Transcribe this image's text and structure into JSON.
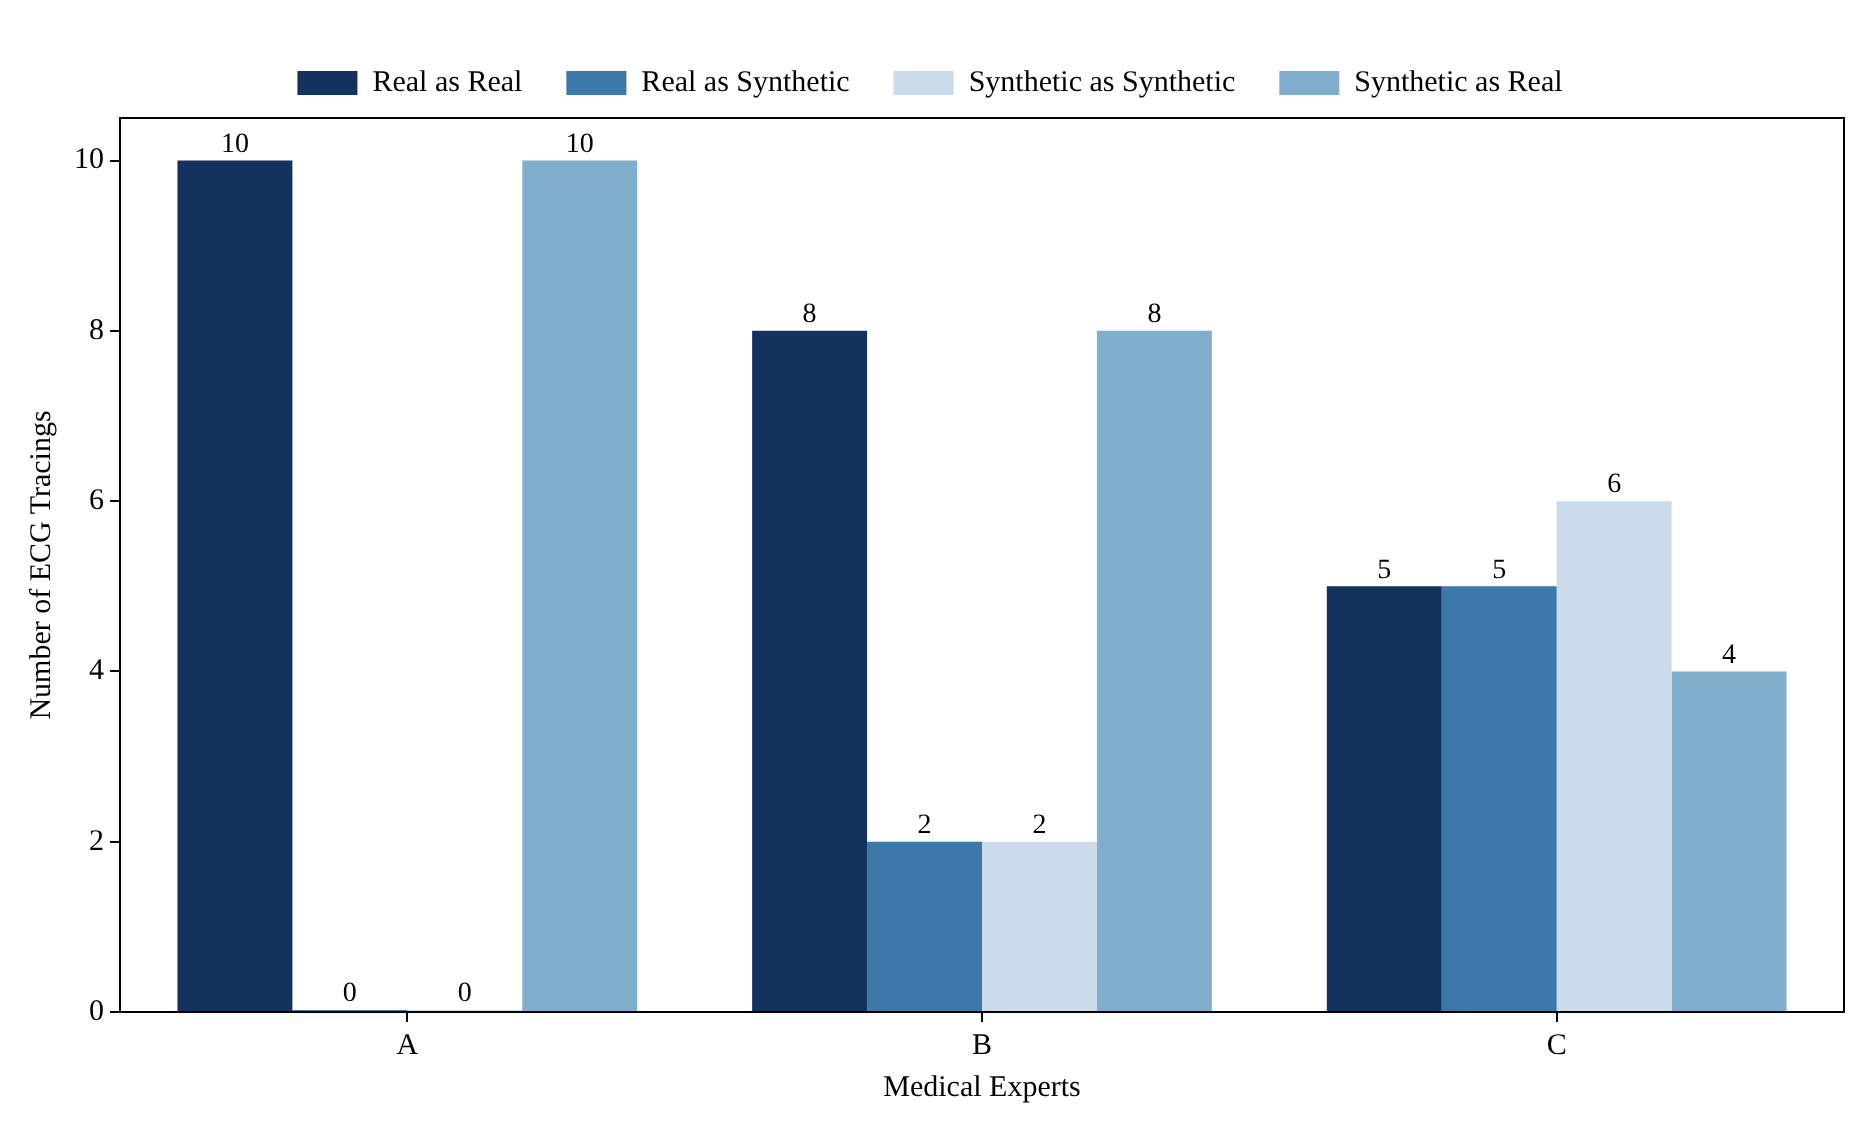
{
  "chart_data": {
    "type": "bar",
    "xlabel": "Medical Experts",
    "ylabel": "Number of ECG Tracings",
    "categories": [
      "A",
      "B",
      "C"
    ],
    "series": [
      {
        "name": "Real as Real",
        "color": "#14325e",
        "values": [
          10,
          8,
          5
        ]
      },
      {
        "name": "Real as Synthetic",
        "color": "#3c78a8",
        "values": [
          0,
          2,
          5
        ]
      },
      {
        "name": "Synthetic as Synthetic",
        "color": "#ccdbea",
        "values": [
          0,
          2,
          6
        ]
      },
      {
        "name": "Synthetic as Real",
        "color": "#7fafcd",
        "values": [
          10,
          8,
          4
        ]
      }
    ],
    "ylim": [
      0,
      10.5
    ],
    "yticks": [
      0,
      2,
      4,
      6,
      8,
      10
    ],
    "grid": false,
    "legend": "top",
    "data_labels": true
  }
}
